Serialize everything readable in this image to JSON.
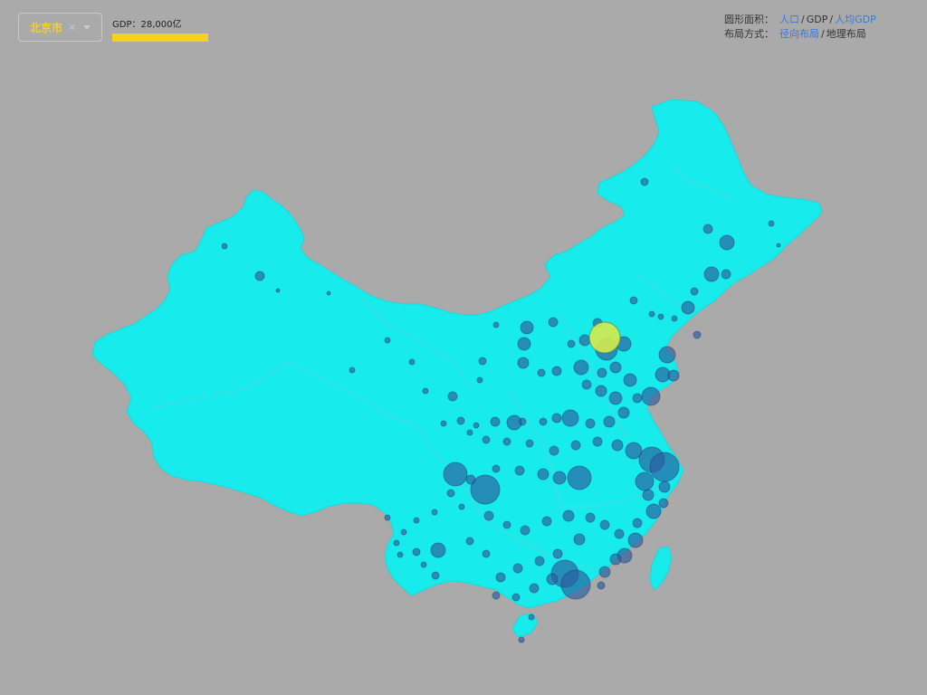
{
  "selection": {
    "city": "北京市",
    "clear_glyph": "✕"
  },
  "gdp": {
    "label": "GDP：28,000亿",
    "bar_fraction": 1.0,
    "bar_color": "#f5d31c"
  },
  "controls": {
    "area_label": "圆形面积：",
    "area_options": [
      "人口",
      "GDP",
      "人均GDP"
    ],
    "area_active": "GDP",
    "layout_label": "布局方式：",
    "layout_options": [
      "径向布局",
      "地理布局"
    ],
    "layout_active": "地理布局"
  },
  "colors": {
    "background": "#aaaaaa",
    "map_fill": "#18ebeb",
    "bubble": "#2b5c9e",
    "highlight_bubble": "#d4ea4c",
    "accent_yellow": "#f5d31c",
    "link_blue": "#3c78d8"
  },
  "icons": {
    "clear": "close-icon",
    "dropdown": "chevron-down-icon"
  }
}
